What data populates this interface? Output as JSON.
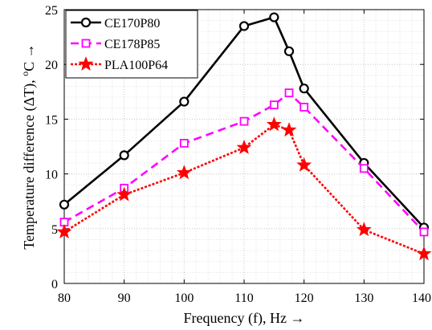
{
  "chart_data": {
    "type": "line",
    "title": "",
    "xlabel": "Frequency (f), Hz →",
    "ylabel_parts": {
      "main": "Temperature difference (ΔT), ",
      "superscript": "o",
      "unit": "C →"
    },
    "xlim": [
      80,
      140
    ],
    "ylim": [
      0,
      25
    ],
    "xticks": [
      80,
      90,
      100,
      110,
      120,
      130,
      140
    ],
    "xtick_labels": [
      "80",
      "90",
      "100",
      "110",
      "120",
      "130",
      "140"
    ],
    "yticks": [
      0,
      5,
      10,
      15,
      20,
      25
    ],
    "ytick_labels": [
      "0",
      "5",
      "10",
      "15",
      "20",
      "25"
    ],
    "grid": true,
    "grid_style": "dotted, minor",
    "legend_position": "top-left",
    "series": [
      {
        "name": "CE170P80",
        "color": "#000000",
        "line_style": "solid",
        "marker": "circle",
        "x": [
          80,
          90,
          100,
          110,
          115,
          117.5,
          120,
          130,
          140
        ],
        "y": [
          7.2,
          11.7,
          16.6,
          23.5,
          24.3,
          21.2,
          17.8,
          11.0,
          5.1
        ]
      },
      {
        "name": "CE178P85",
        "color": "#ff00ff",
        "line_style": "dashed",
        "marker": "square",
        "x": [
          80,
          90,
          100,
          110,
          115,
          117.5,
          120,
          130,
          140
        ],
        "y": [
          5.6,
          8.7,
          12.8,
          14.8,
          16.3,
          17.4,
          16.1,
          10.5,
          4.7
        ]
      },
      {
        "name": "PLA100P64",
        "color": "#ff0000",
        "line_style": "dotted",
        "marker": "star",
        "x": [
          80,
          90,
          100,
          110,
          115,
          117.5,
          120,
          130,
          140
        ],
        "y": [
          4.7,
          8.1,
          10.1,
          12.4,
          14.5,
          14.0,
          10.8,
          4.9,
          2.7
        ]
      }
    ]
  }
}
